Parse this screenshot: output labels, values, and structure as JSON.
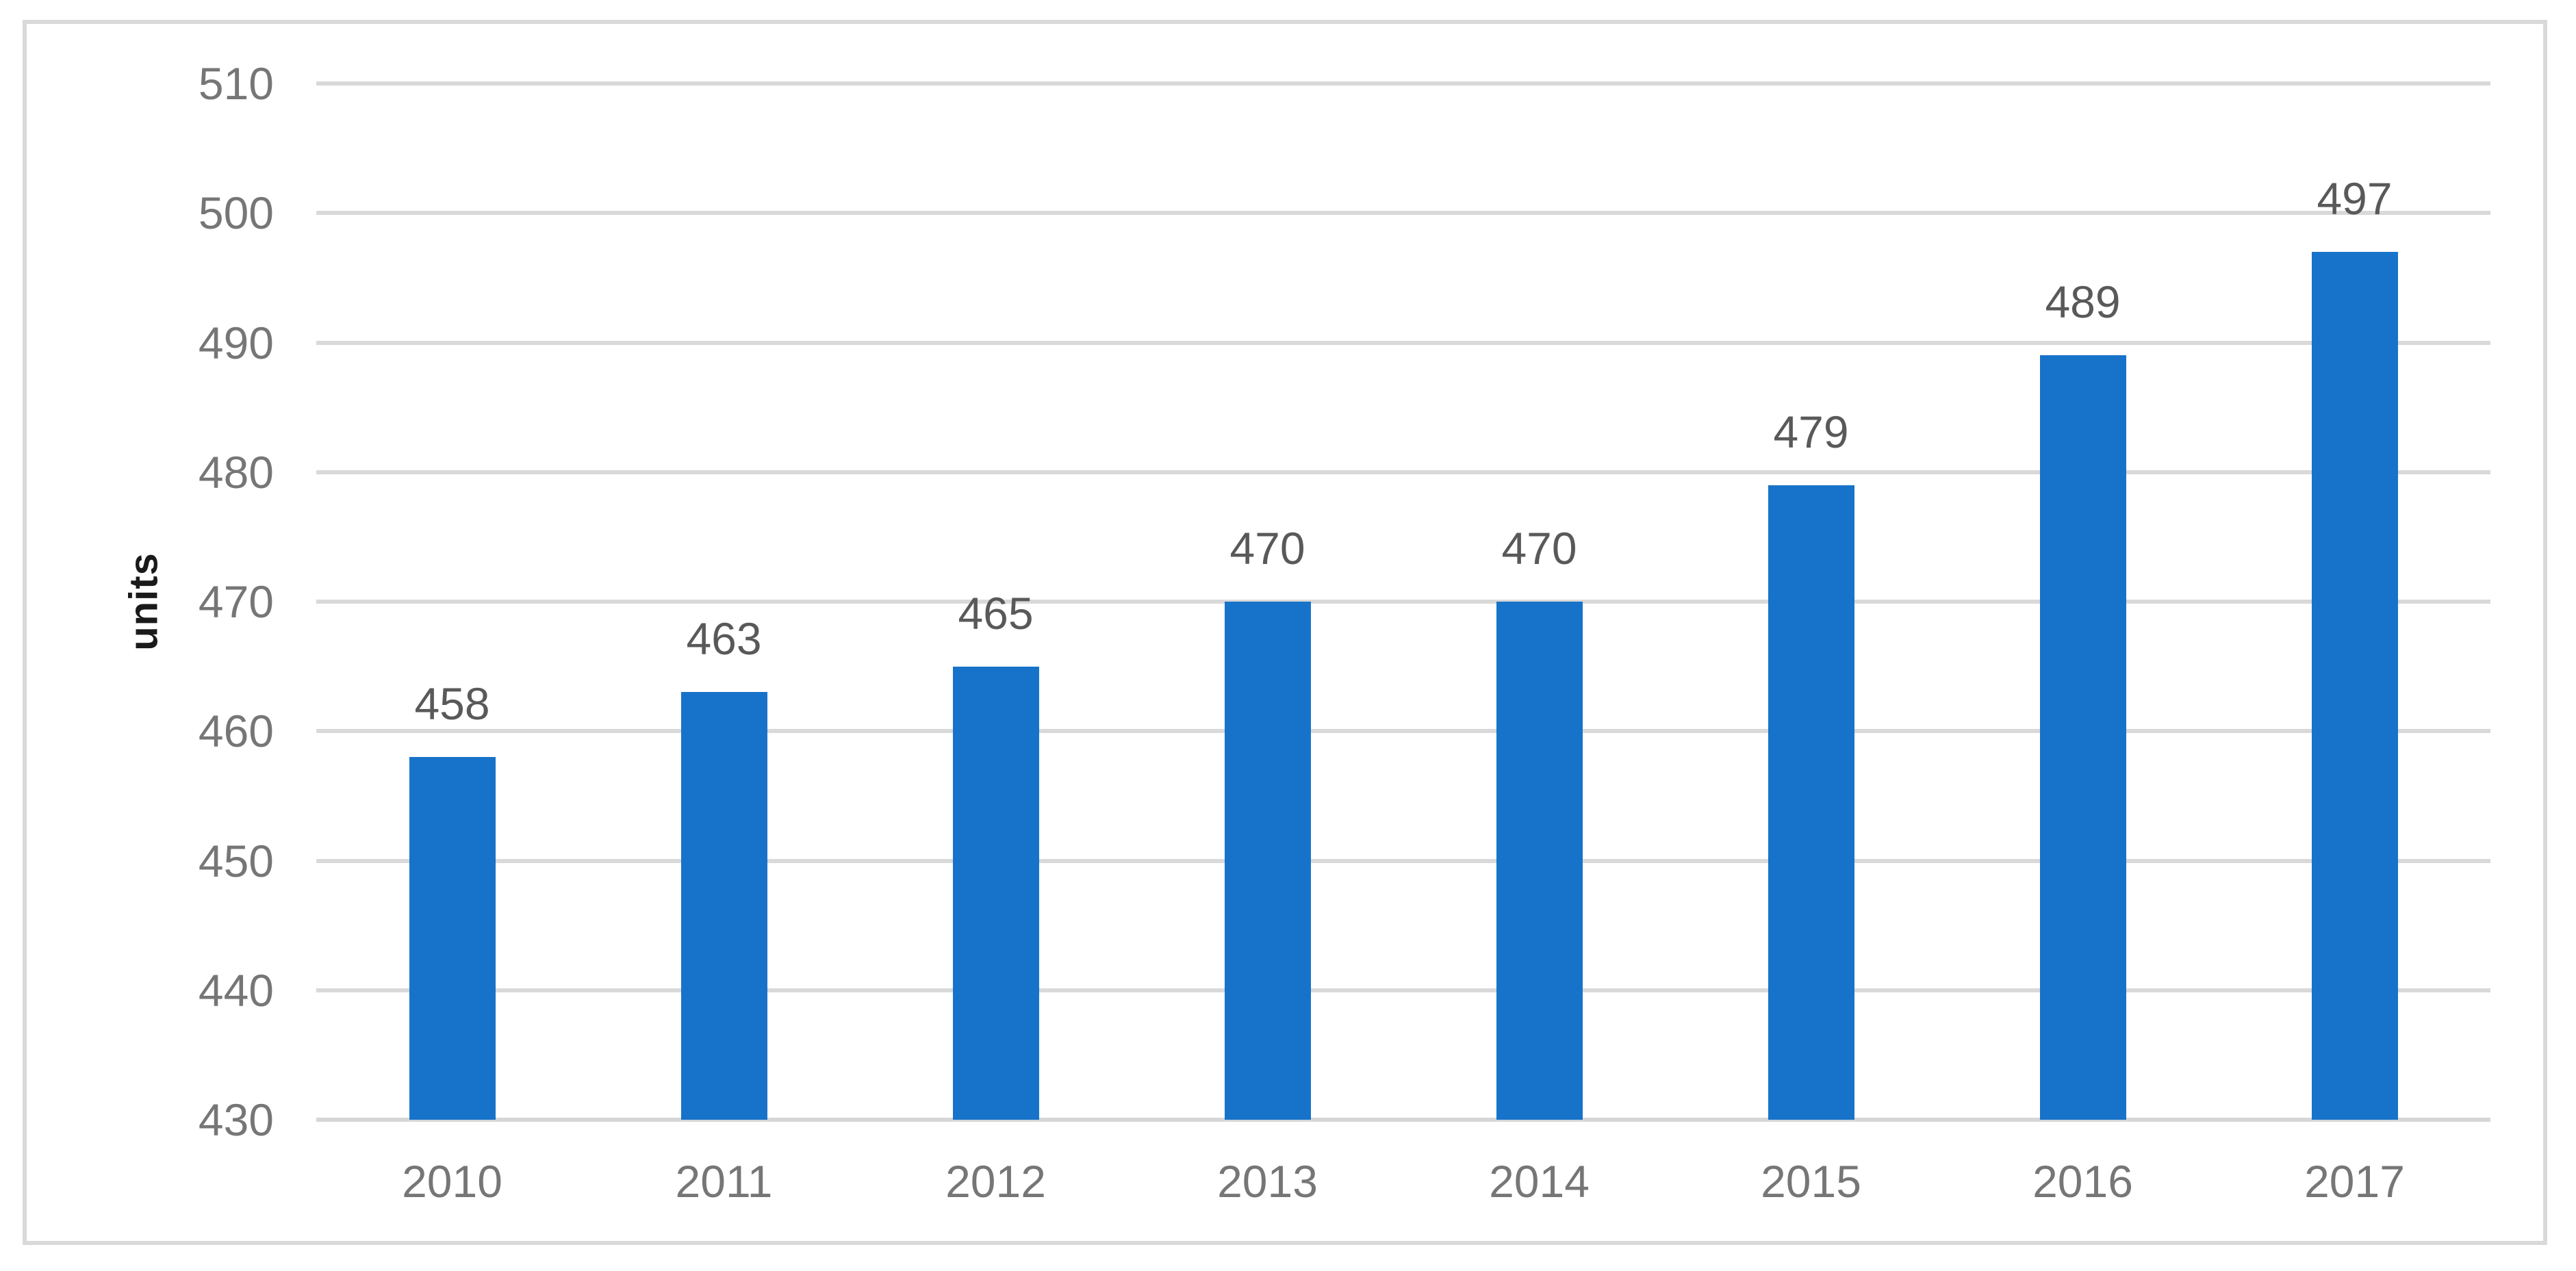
{
  "chart_data": {
    "type": "bar",
    "title": "",
    "xlabel": "",
    "ylabel": "units",
    "categories": [
      "2010",
      "2011",
      "2012",
      "2013",
      "2014",
      "2015",
      "2016",
      "2017"
    ],
    "values": [
      458,
      463,
      465,
      470,
      470,
      479,
      489,
      497
    ],
    "data_labels_shown": true,
    "ylim": [
      430,
      510
    ],
    "ytick_step": 10,
    "ytick_labels": [
      "430",
      "440",
      "450",
      "460",
      "470",
      "480",
      "490",
      "500",
      "510"
    ],
    "grid": true,
    "legend": "none",
    "colors": {
      "bar": "#1773C9",
      "gridline": "#D9D9D9",
      "axis_line": "#D6D6D6",
      "frame_border": "#D9D9D9",
      "tick_label": "#767676",
      "data_label": "#595959",
      "axis_title": "#1A1A1A",
      "background": "#FFFFFF"
    }
  }
}
